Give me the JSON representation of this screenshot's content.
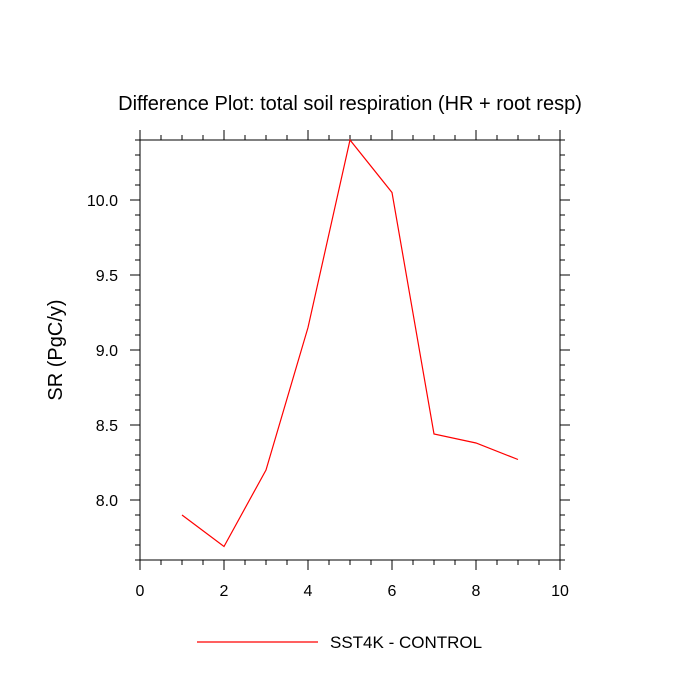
{
  "chart_data": {
    "type": "line",
    "title": "Difference Plot: total soil respiration (HR + root resp)",
    "xlabel": "",
    "ylabel": "SR  (PgC/y)",
    "xlim": [
      0,
      10
    ],
    "ylim": [
      7.6,
      10.4
    ],
    "xticks": [
      0,
      2,
      4,
      6,
      8,
      10
    ],
    "xtick_labels": [
      "0",
      "2",
      "4",
      "6",
      "8",
      "10"
    ],
    "yticks": [
      8.0,
      8.5,
      9.0,
      9.5,
      10.0
    ],
    "ytick_labels": [
      "8.0",
      "8.5",
      "9.0",
      "9.5",
      "10.0"
    ],
    "grid": false,
    "legend": "bottom",
    "series": [
      {
        "name": "SST4K - CONTROL",
        "color": "#ff0000",
        "x": [
          1,
          2,
          3,
          4,
          5,
          6,
          7,
          8,
          9
        ],
        "y": [
          7.9,
          7.69,
          8.2,
          9.15,
          10.4,
          10.05,
          8.44,
          8.38,
          8.27
        ]
      }
    ]
  }
}
